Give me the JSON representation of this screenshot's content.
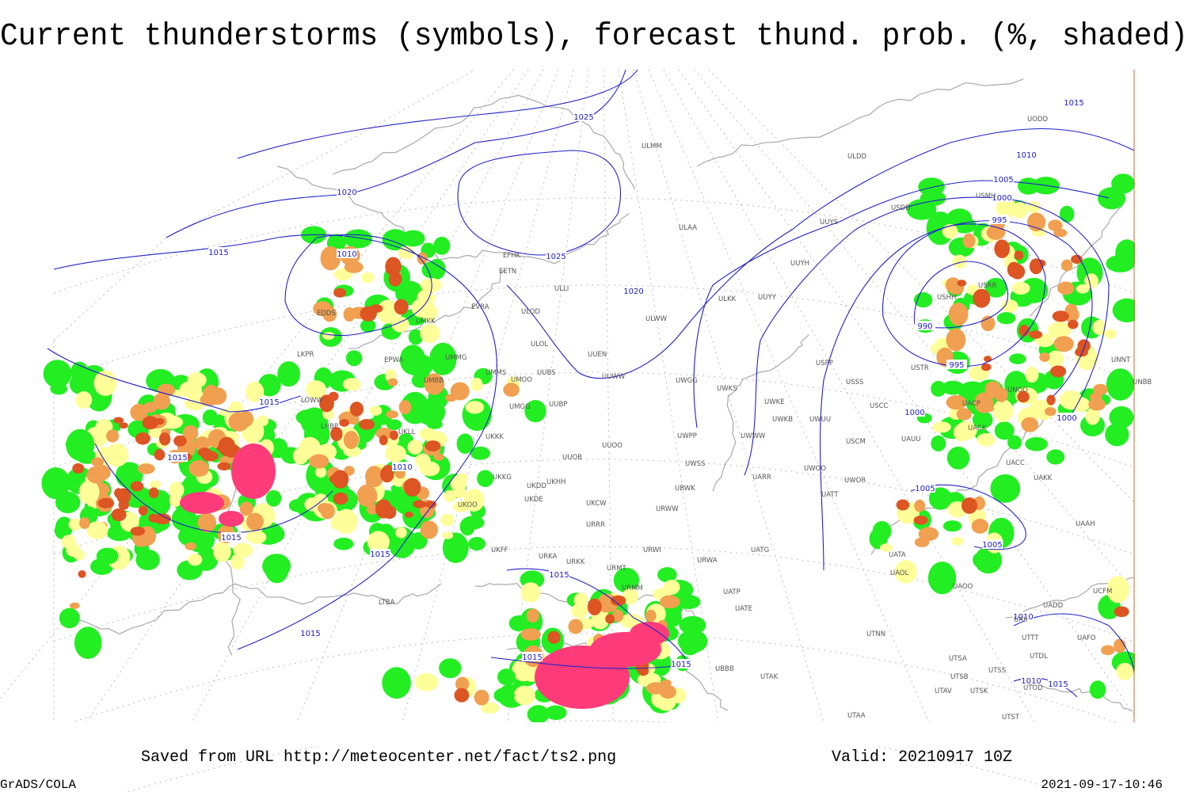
{
  "title": "Current thunderstorms (symbols), forecast thund. prob. (%, shaded)",
  "footer": {
    "source": "Saved from URL http://meteocenter.net/fact/ts2.png",
    "valid": "Valid: 20210917 10Z",
    "credit": "GrADS/COLA",
    "timestamp": "2021-09-17-10:46"
  },
  "isobar_labels": [
    1025,
    1020,
    1015,
    1010,
    1025,
    1020,
    1015,
    1015,
    1010,
    1015,
    1015,
    1015,
    1015,
    1015,
    1015,
    1015,
    1010,
    1005,
    1000,
    995,
    990,
    995,
    1000,
    1000,
    1005,
    1005,
    1010,
    1010,
    1015
  ],
  "stations": [
    "ULMM",
    "ULAA",
    "UUYS",
    "UUYH",
    "ULDD",
    "USDD",
    "USMU",
    "USRR",
    "USHH",
    "UUYY",
    "ULKK",
    "ULWW",
    "UUEN",
    "UUWW",
    "UWGG",
    "UWKS",
    "UWKE",
    "UWKB",
    "UWUU",
    "USSS",
    "USPP",
    "USCC",
    "USCM",
    "UAUU",
    "UACC",
    "UAKK",
    "UACK",
    "UACP",
    "UNOO",
    "UNNT",
    "UNBB",
    "USTR",
    "UWWW",
    "UWPP",
    "UWSS",
    "UUOO",
    "UUOB",
    "UUBP",
    "UUBS",
    "UMOO",
    "UMMS",
    "UMGG",
    "UKKK",
    "UKHH",
    "UKDD",
    "UKDE",
    "UKCW",
    "URRR",
    "URWW",
    "UBWK",
    "UARR",
    "UWOO",
    "UWOR",
    "UATT",
    "UATG",
    "URWI",
    "URWA",
    "URKK",
    "URMT",
    "URMM",
    "UKFF",
    "URKA",
    "UKOO",
    "UKKG",
    "UATP",
    "UATE",
    "UTAK",
    "UBBB",
    "UTNN",
    "UAOO",
    "UAOL",
    "UATA",
    "UAAH",
    "UTSA",
    "UTSB",
    "UTSS",
    "UTAV",
    "UTSK",
    "UTST",
    "UTAA",
    "UTDL",
    "UTTT",
    "UAFO",
    "UAII",
    "UADD",
    "UCFM",
    "UTOD",
    "EFHK",
    "EETN",
    "ULLI",
    "EVRA",
    "ULOD",
    "ULOL",
    "EPWA",
    "UMMG",
    "UMBB",
    "UKLL",
    "LKPR",
    "EDDS",
    "LHBP",
    "UMKK",
    "LOWW",
    "UODD",
    "LTBA"
  ]
}
